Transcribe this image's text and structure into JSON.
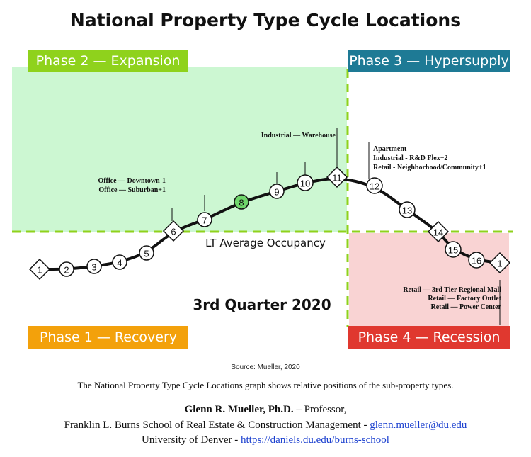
{
  "title": "National Property Type Cycle Locations",
  "phases": {
    "expansion": {
      "label": "Phase 2 — Expansion",
      "color": "#8fd21c",
      "fill": "#ccf7d2"
    },
    "hypersupply": {
      "label": "Phase 3 — Hypersupply",
      "color": "#1e7a95"
    },
    "recovery": {
      "label": "Phase 1 — Recovery",
      "color": "#f3a10b"
    },
    "recession": {
      "label": "Phase 4 — Recession",
      "color": "#e0382f",
      "fill": "#f9d3d3"
    }
  },
  "center_labels": {
    "lt_average": "LT Average Occupancy",
    "quarter": "3rd Quarter 2020"
  },
  "cycle_points": [
    {
      "label": "1",
      "shape": "diamond"
    },
    {
      "label": "2",
      "shape": "circle"
    },
    {
      "label": "3",
      "shape": "circle"
    },
    {
      "label": "4",
      "shape": "circle"
    },
    {
      "label": "5",
      "shape": "circle"
    },
    {
      "label": "6",
      "shape": "diamond"
    },
    {
      "label": "7",
      "shape": "circle"
    },
    {
      "label": "8",
      "shape": "circle-highlight"
    },
    {
      "label": "9",
      "shape": "circle"
    },
    {
      "label": "10",
      "shape": "circle"
    },
    {
      "label": "11",
      "shape": "diamond"
    },
    {
      "label": "12",
      "shape": "circle"
    },
    {
      "label": "13",
      "shape": "circle"
    },
    {
      "label": "14",
      "shape": "diamond"
    },
    {
      "label": "15",
      "shape": "circle"
    },
    {
      "label": "16",
      "shape": "circle"
    },
    {
      "label": "1",
      "shape": "diamond"
    }
  ],
  "annotations": {
    "office": [
      "Office — Downtown-1",
      "Office — Suburban+1"
    ],
    "warehouse": [
      "Industrial  — Warehouse"
    ],
    "apartment": [
      "Apartment",
      "Industrial  - R&D Flex+2",
      "Retail  - Neighborhood/Community+1"
    ],
    "retail": [
      "Retail — 3rd Tier Regional Mall",
      "Retail — Factory Outlet",
      "Retail — Power Center"
    ]
  },
  "footer": {
    "source": "Source: Mueller, 2020",
    "caption": "The National Property Type Cycle Locations graph shows relative positions of the sub-property types.",
    "author_name": "Glenn R. Mueller, Ph.D.",
    "author_role": " – Professor,",
    "school": "Franklin L. Burns School of Real Estate & Construction Management  -  ",
    "email": "glenn.mueller@du.edu",
    "university": "University of Denver   -   ",
    "url": "https://daniels.du.edu/burns-school"
  }
}
